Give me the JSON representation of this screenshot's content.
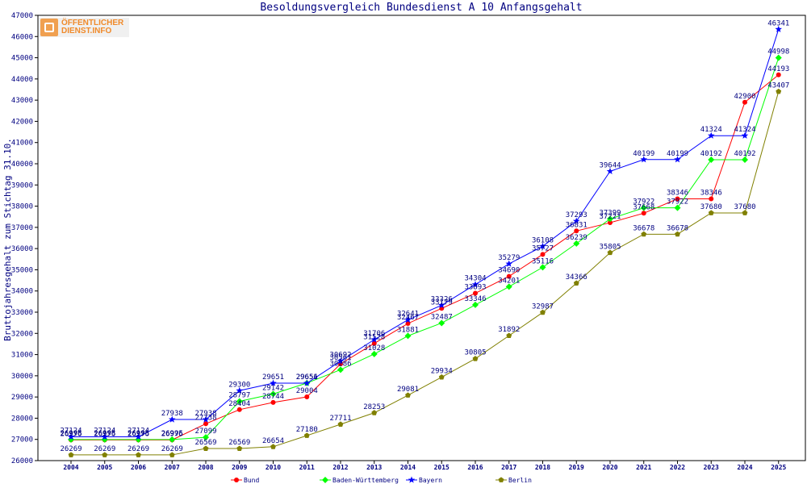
{
  "logo": {
    "line1": "ÖFFENTLICHER",
    "line2": "DIENST.INFO"
  },
  "chart_data": {
    "type": "line",
    "title": "Besoldungsvergleich Bundesdienst A 10 Anfangsgehalt",
    "xlabel": "",
    "ylabel": "Bruttojahresgehalt zum Stichtag 31.10.",
    "ylim": [
      26000,
      47000
    ],
    "yticks": [
      26000,
      27000,
      28000,
      29000,
      30000,
      31000,
      32000,
      33000,
      34000,
      35000,
      36000,
      37000,
      38000,
      39000,
      40000,
      41000,
      42000,
      43000,
      44000,
      45000,
      46000,
      47000
    ],
    "categories": [
      "2004",
      "2005",
      "2006",
      "2007",
      "2008",
      "2009",
      "2010",
      "2011",
      "2012",
      "2013",
      "2014",
      "2015",
      "2016",
      "2017",
      "2018",
      "2019",
      "2020",
      "2021",
      "2022",
      "2023",
      "2024",
      "2025"
    ],
    "legend_position": "bottom",
    "grid": false,
    "series": [
      {
        "name": "Bund",
        "color": "#ff0000",
        "marker": "circle",
        "values": [
          26976,
          26976,
          26976,
          26976,
          27738,
          28404,
          28744,
          29004,
          30561,
          31528,
          32467,
          33179,
          33893,
          34690,
          35727,
          36831,
          37221,
          37668,
          38346,
          38346,
          42900,
          44193
        ]
      },
      {
        "name": "Baden-Württemberg",
        "color": "#00ff00",
        "marker": "diamond",
        "values": [
          26995,
          26995,
          26995,
          26995,
          27099,
          28797,
          29142,
          29656,
          30286,
          31028,
          31881,
          32487,
          33346,
          34201,
          35116,
          36239,
          37399,
          37922,
          37922,
          40192,
          40192,
          44998
        ]
      },
      {
        "name": "Bayern",
        "color": "#0000ff",
        "marker": "star",
        "values": [
          27124,
          27124,
          27124,
          27938,
          27938,
          29300,
          29651,
          29651,
          30692,
          31706,
          32641,
          33326,
          34304,
          35279,
          36108,
          37293,
          39644,
          40199,
          40199,
          41324,
          41324,
          46341
        ]
      },
      {
        "name": "Berlin",
        "color": "#808000",
        "marker": "pentagon",
        "values": [
          26269,
          26269,
          26269,
          26269,
          26569,
          26569,
          26654,
          27180,
          27711,
          28253,
          29081,
          29934,
          30805,
          31892,
          32987,
          34366,
          35805,
          36678,
          36678,
          37680,
          37680,
          43407
        ]
      }
    ]
  }
}
